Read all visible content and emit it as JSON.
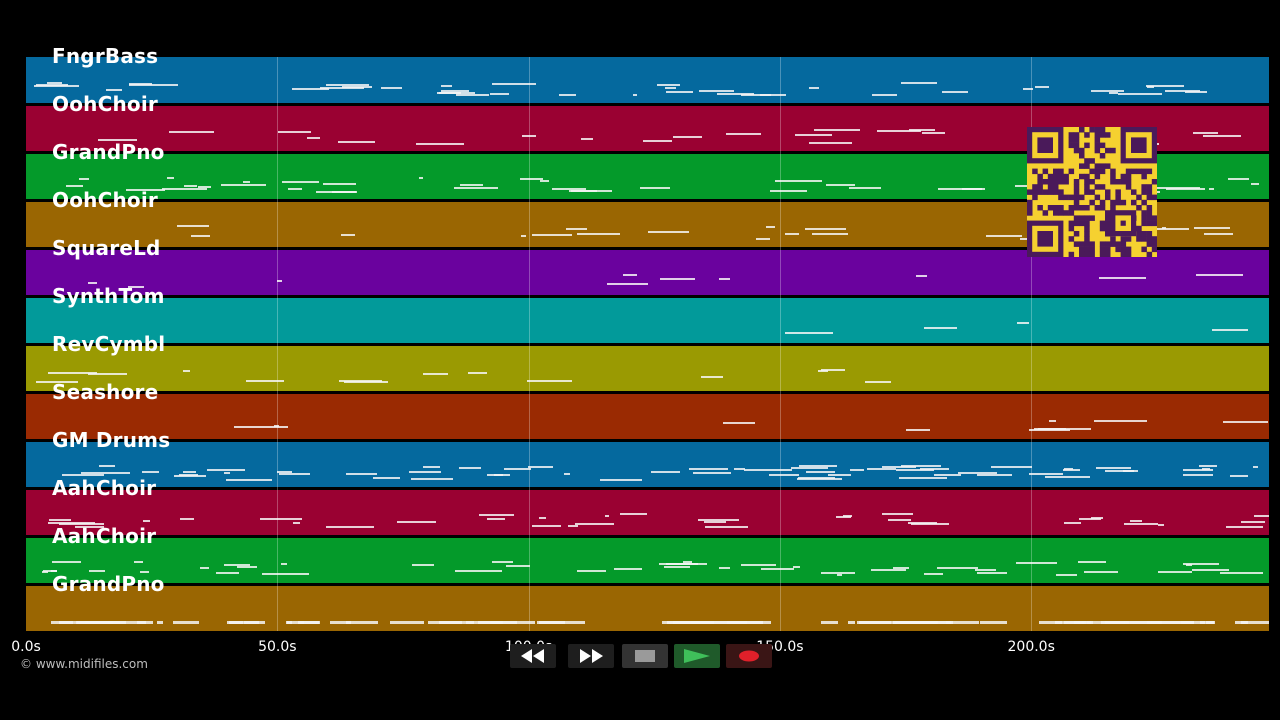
{
  "tracks": [
    {
      "label": "FngrBass",
      "color": "#05699e"
    },
    {
      "label": "OohChoir",
      "color": "#9a0132"
    },
    {
      "label": "GrandPno",
      "color": "#049a2a"
    },
    {
      "label": "OohChoir",
      "color": "#9a6602"
    },
    {
      "label": "SquareLd",
      "color": "#6a029e"
    },
    {
      "label": "SynthTom",
      "color": "#029a9a"
    },
    {
      "label": "RevCymbl",
      "color": "#9a9a02"
    },
    {
      "label": "Seashore",
      "color": "#9a2a02"
    },
    {
      "label": "GM Drums",
      "color": "#05699e"
    },
    {
      "label": "AahChoir",
      "color": "#9a0132"
    },
    {
      "label": "AahChoir",
      "color": "#049a2a"
    },
    {
      "label": "GrandPno",
      "color": "#9a6602"
    }
  ],
  "timeline": {
    "ticks": [
      "0.0s",
      "50.0s",
      "100.0s",
      "150.0s",
      "200.0s"
    ],
    "tick_seconds": [
      0,
      50,
      100,
      150,
      200
    ],
    "max_seconds": 247
  },
  "copyright": "© www.midifiles.com",
  "qr": {
    "color": "#f5d130",
    "dark": "#4a1a5a"
  },
  "controls": [
    {
      "name": "rewind-button",
      "icon": "rewind-icon",
      "bg": "#1e1e1e"
    },
    {
      "name": "fast-forward-button",
      "icon": "fast-forward-icon",
      "bg": "#1e1e1e"
    },
    {
      "name": "stop-button",
      "icon": "stop-icon",
      "bg": "#333333"
    },
    {
      "name": "play-button",
      "icon": "play-icon",
      "bg": "#1f5a2a"
    },
    {
      "name": "record-button",
      "icon": "record-icon",
      "bg": "#3a1515"
    }
  ]
}
